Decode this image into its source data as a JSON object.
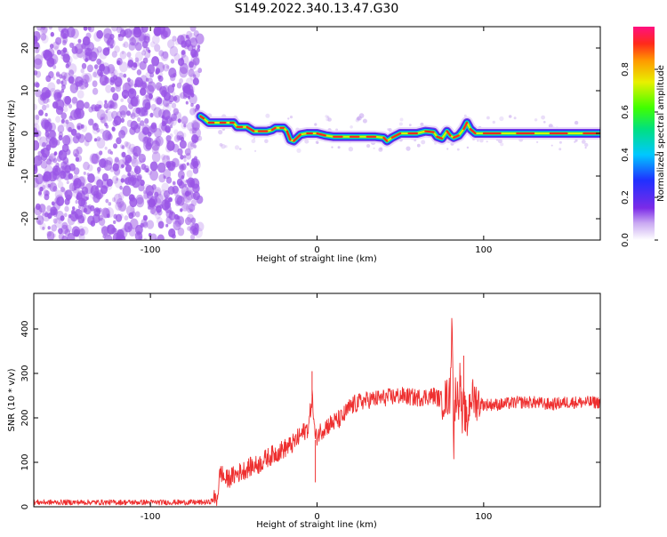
{
  "title": "S149.2022.340.13.47.G30",
  "colors": {
    "spectrum_noise": "#9a55e6",
    "snr_line": "#ee3030"
  },
  "chart_data": [
    {
      "type": "heatmap",
      "xlabel": "Height of straight line (km)",
      "ylabel": "Frequency (Hz)",
      "xlim": [
        -170,
        170
      ],
      "ylim": [
        -25,
        25
      ],
      "xticks": [
        -100,
        0,
        100
      ],
      "yticks": [
        -20,
        -10,
        0,
        10,
        20
      ],
      "noise_region_x": [
        -170,
        -70
      ],
      "ridge": {
        "x": [
          -70,
          -68,
          -65,
          -62,
          -58,
          -55,
          -52,
          -50,
          -48,
          -45,
          -42,
          -38,
          -35,
          -30,
          -27,
          -25,
          -22,
          -20,
          -18,
          -16,
          -14,
          -10,
          -6,
          -3,
          0,
          5,
          10,
          15,
          20,
          25,
          30,
          35,
          40,
          42,
          45,
          50,
          55,
          60,
          65,
          70,
          72,
          75,
          78,
          80,
          82,
          85,
          88,
          90,
          92,
          95,
          100,
          110,
          120,
          130,
          140,
          150,
          160,
          170
        ],
        "freq": [
          4.0,
          3.5,
          2.5,
          2.5,
          2.5,
          2.5,
          2.5,
          2.5,
          1.5,
          1.5,
          1.5,
          0.5,
          0.5,
          0.5,
          0.8,
          1.3,
          1.3,
          1.3,
          0.5,
          -1.5,
          -1.8,
          -0.3,
          0.0,
          0.0,
          0.0,
          -0.5,
          -0.8,
          -0.8,
          -0.8,
          -0.8,
          -0.8,
          -0.8,
          -1.0,
          -1.8,
          -1.0,
          0.0,
          0.0,
          0.0,
          0.5,
          0.3,
          -0.8,
          -1.2,
          0.5,
          -0.5,
          -1.0,
          -0.5,
          1.0,
          2.5,
          1.0,
          0.0,
          0.0,
          0.0,
          0.0,
          0.0,
          0.0,
          0.0,
          0.0,
          0.0
        ]
      },
      "colorbar": {
        "label": "Normalized spectral amplitude",
        "ticks": [
          0.0,
          0.2,
          0.4,
          0.6,
          0.8
        ],
        "range": [
          0,
          1
        ]
      }
    },
    {
      "type": "line",
      "xlabel": "Height of straight line (km)",
      "ylabel": "SNR (10 * v/v)",
      "xlim": [
        -170,
        170
      ],
      "ylim": [
        0,
        480
      ],
      "xticks": [
        -100,
        0,
        100
      ],
      "yticks": [
        0,
        100,
        200,
        300,
        400
      ],
      "series": [
        {
          "x": [
            -170,
            -65,
            -60,
            -58,
            -55,
            -50,
            -45,
            -40,
            -35,
            -30,
            -25,
            -20,
            -15,
            -10,
            -5,
            -3,
            -1,
            0,
            2,
            5,
            10,
            15,
            20,
            25,
            30,
            40,
            50,
            60,
            70,
            75,
            80,
            81,
            82,
            83,
            85,
            86,
            87,
            88,
            90,
            92,
            95,
            100,
            110,
            120,
            130,
            140,
            150,
            160,
            170
          ],
          "y": [
            10,
            10,
            20,
            80,
            60,
            70,
            80,
            90,
            95,
            110,
            120,
            130,
            140,
            160,
            180,
            250,
            150,
            160,
            170,
            180,
            190,
            200,
            225,
            235,
            240,
            245,
            250,
            245,
            250,
            240,
            250,
            470,
            130,
            260,
            240,
            300,
            180,
            230,
            180,
            250,
            240,
            230,
            230,
            235,
            235,
            230,
            235,
            235,
            235
          ]
        }
      ]
    }
  ]
}
